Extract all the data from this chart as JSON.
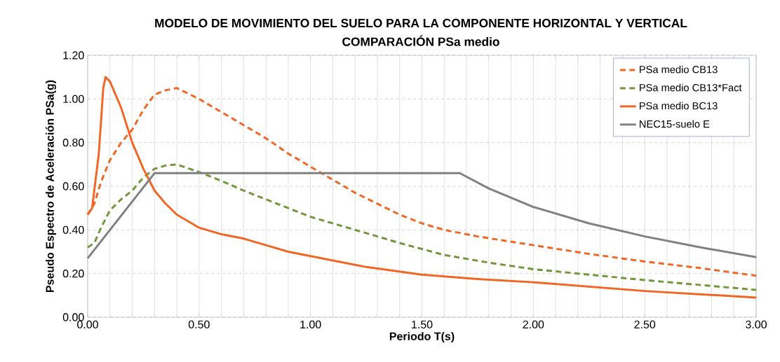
{
  "chart_data": {
    "type": "line",
    "title": "MODELO DE MOVIMIENTO DEL SUELO PARA LA COMPONENTE HORIZONTAL Y VERTICAL",
    "subtitle": "COMPARACIÓN PSa medio",
    "xlabel": "Periodo T(s)",
    "ylabel": "Pseudo Espectro de Aceleración PSa(g)",
    "xlim": [
      0,
      3
    ],
    "ylim": [
      0,
      1.2
    ],
    "xticks": [
      {
        "value": 0,
        "label": "0.00"
      },
      {
        "value": 0.5,
        "label": "0.50"
      },
      {
        "value": 1,
        "label": "1.00"
      },
      {
        "value": 1.5,
        "label": "1.50"
      },
      {
        "value": 2,
        "label": "2.00"
      },
      {
        "value": 2.5,
        "label": "2.50"
      },
      {
        "value": 3,
        "label": "3.00"
      }
    ],
    "yticks": [
      {
        "value": 0,
        "label": "0.00"
      },
      {
        "value": 0.2,
        "label": "0.20"
      },
      {
        "value": 0.4,
        "label": "0.40"
      },
      {
        "value": 0.6,
        "label": "0.60"
      },
      {
        "value": 0.8,
        "label": "0.80"
      },
      {
        "value": 1,
        "label": "1.00"
      },
      {
        "value": 1.2,
        "label": "1.20"
      }
    ],
    "grid": true,
    "legend": "top right",
    "marker": "none",
    "series": [
      {
        "name": "PSa medio CB13",
        "color": "#f26522",
        "line_style": "dashed",
        "x": [
          0,
          0.03,
          0.06,
          0.1,
          0.15,
          0.2,
          0.25,
          0.3,
          0.35,
          0.4,
          0.5,
          0.6,
          0.7,
          0.8,
          0.9,
          1.0,
          1.1,
          1.2,
          1.3,
          1.4,
          1.5,
          1.6,
          1.75,
          2.0,
          2.25,
          2.5,
          2.75,
          3.0
        ],
        "values": [
          0.47,
          0.52,
          0.62,
          0.72,
          0.8,
          0.86,
          0.95,
          1.02,
          1.04,
          1.05,
          1.0,
          0.94,
          0.88,
          0.82,
          0.75,
          0.69,
          0.63,
          0.57,
          0.52,
          0.47,
          0.43,
          0.4,
          0.37,
          0.33,
          0.29,
          0.255,
          0.225,
          0.19
        ]
      },
      {
        "name": "PSa medio CB13*Fact",
        "color": "#70963a",
        "line_style": "dashed",
        "x": [
          0,
          0.03,
          0.06,
          0.1,
          0.15,
          0.2,
          0.25,
          0.3,
          0.35,
          0.4,
          0.5,
          0.6,
          0.7,
          0.8,
          0.9,
          1.0,
          1.2,
          1.4,
          1.6,
          1.8,
          2.0,
          2.5,
          3.0
        ],
        "values": [
          0.32,
          0.34,
          0.41,
          0.49,
          0.54,
          0.58,
          0.64,
          0.68,
          0.695,
          0.7,
          0.665,
          0.625,
          0.58,
          0.54,
          0.5,
          0.46,
          0.4,
          0.34,
          0.285,
          0.25,
          0.22,
          0.17,
          0.125
        ]
      },
      {
        "name": "PSa medio BC13",
        "color": "#f26522",
        "line_style": "solid",
        "x": [
          0,
          0.02,
          0.05,
          0.07,
          0.08,
          0.1,
          0.15,
          0.2,
          0.25,
          0.3,
          0.35,
          0.4,
          0.5,
          0.6,
          0.7,
          0.8,
          0.9,
          1.0,
          1.25,
          1.5,
          1.75,
          2.0,
          2.5,
          3.0
        ],
        "values": [
          0.47,
          0.5,
          0.75,
          1.05,
          1.1,
          1.08,
          0.96,
          0.8,
          0.68,
          0.58,
          0.52,
          0.47,
          0.41,
          0.38,
          0.36,
          0.33,
          0.3,
          0.28,
          0.23,
          0.195,
          0.175,
          0.16,
          0.12,
          0.09
        ]
      },
      {
        "name": "NEC15-suelo E",
        "color": "#808080",
        "line_style": "solid",
        "x": [
          0,
          0.3,
          1.67,
          1.8,
          2.0,
          2.25,
          2.5,
          2.75,
          3.0
        ],
        "values": [
          0.27,
          0.66,
          0.66,
          0.59,
          0.505,
          0.43,
          0.37,
          0.32,
          0.275
        ]
      }
    ]
  }
}
